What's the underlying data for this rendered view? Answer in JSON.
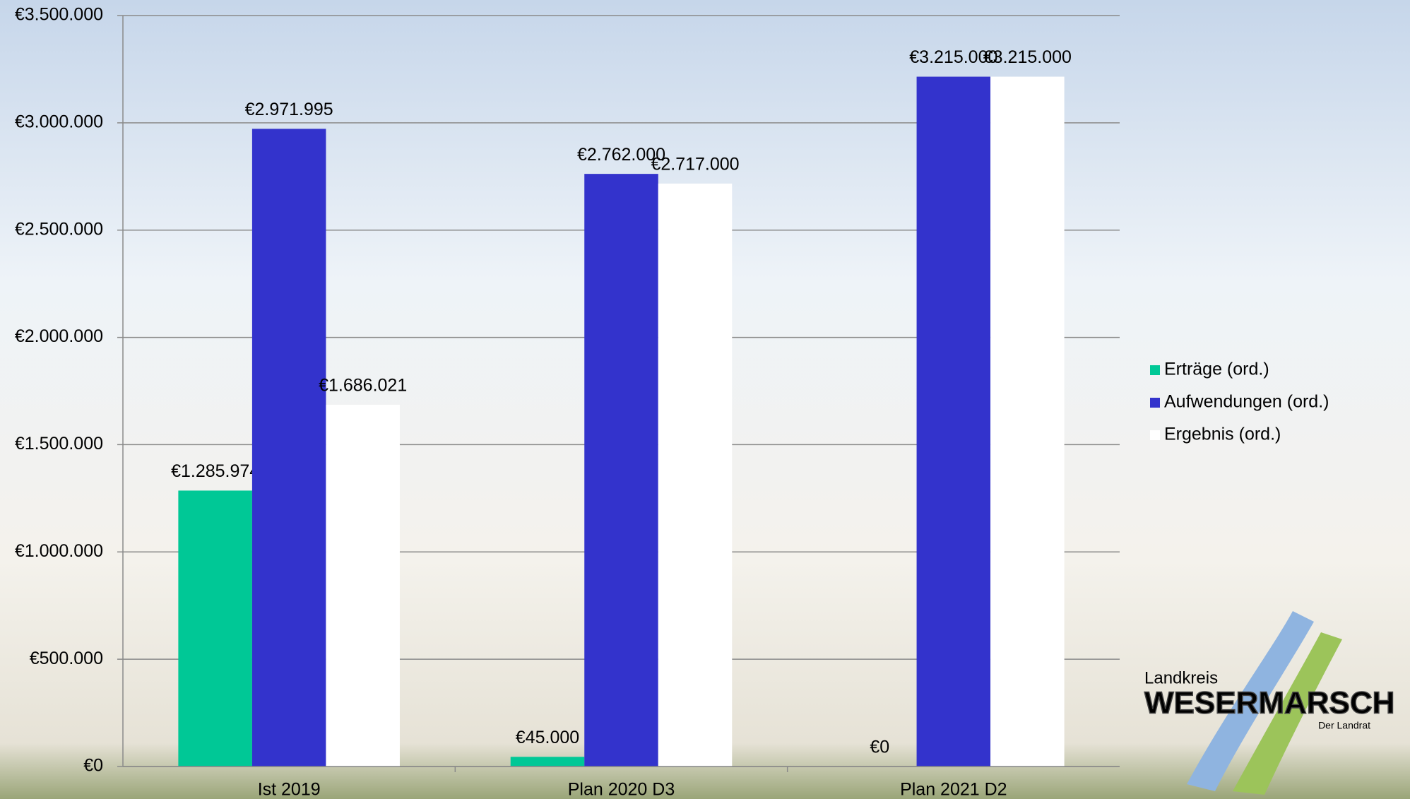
{
  "chart_data": {
    "type": "bar",
    "categories": [
      "Ist 2019",
      "Plan 2020 D3",
      "Plan 2021 D2"
    ],
    "series": [
      {
        "name": "Erträge (ord.)",
        "color": "#00c896",
        "values": [
          1285974,
          45000,
          0
        ],
        "value_labels": [
          "€1.285.974",
          "€45.000",
          "€0"
        ]
      },
      {
        "name": "Aufwendungen (ord.)",
        "color": "#3333cc",
        "values": [
          2971995,
          2762000,
          3215000
        ],
        "value_labels": [
          "€2.971.995",
          "€2.762.000",
          "€3.215.000"
        ]
      },
      {
        "name": "Ergebnis (ord.)",
        "color": "#ffffff",
        "values": [
          1686021,
          2717000,
          3215000
        ],
        "value_labels": [
          "€1.686.021",
          "€2.717.000",
          "€3.215.000"
        ]
      }
    ],
    "ylim": [
      0,
      3500000
    ],
    "yticks": [
      {
        "value": 0,
        "label": "€0"
      },
      {
        "value": 500000,
        "label": "€500.000"
      },
      {
        "value": 1000000,
        "label": "€1.000.000"
      },
      {
        "value": 1500000,
        "label": "€1.500.000"
      },
      {
        "value": 2000000,
        "label": "€2.000.000"
      },
      {
        "value": 2500000,
        "label": "€2.500.000"
      },
      {
        "value": 3000000,
        "label": "€3.000.000"
      },
      {
        "value": 3500000,
        "label": "€3.500.000"
      }
    ],
    "grid": true,
    "legend": "right"
  },
  "logo": {
    "line1": "Landkreis",
    "line2": "WESERMARSCH",
    "line3": "Der Landrat"
  }
}
